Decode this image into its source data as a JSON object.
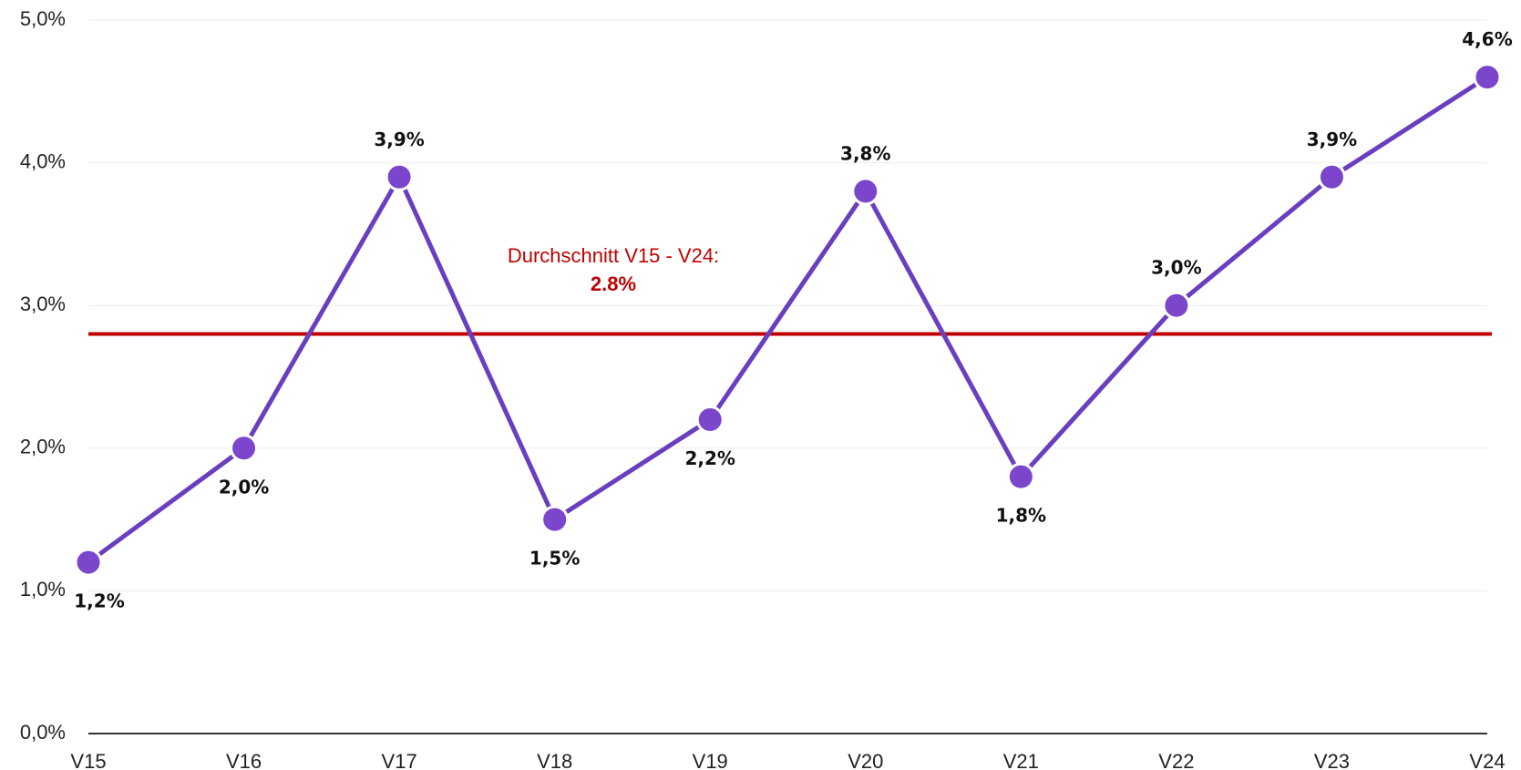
{
  "chart_data": {
    "type": "line",
    "categories": [
      "V15",
      "V16",
      "V17",
      "V18",
      "V19",
      "V20",
      "V21",
      "V22",
      "V23",
      "V24"
    ],
    "series": [
      {
        "color": "#6a3fbf",
        "marker_color": "#7b45cc",
        "values": [
          1.2,
          2.0,
          3.9,
          1.5,
          2.2,
          3.8,
          1.8,
          3.0,
          3.9,
          4.6
        ],
        "value_labels": [
          "1,2%",
          "2,0%",
          "3,9%",
          "1,5%",
          "2,2%",
          "3,8%",
          "1,8%",
          "3,0%",
          "3,9%",
          "4,6%"
        ]
      }
    ],
    "ylim": [
      0,
      5
    ],
    "yticks": [
      {
        "value": 0,
        "label": "0,0%"
      },
      {
        "value": 1,
        "label": "1,0%"
      },
      {
        "value": 2,
        "label": "2,0%"
      },
      {
        "value": 3,
        "label": "3,0%"
      },
      {
        "value": 4,
        "label": "4,0%"
      },
      {
        "value": 5,
        "label": "5,0%"
      }
    ],
    "grid": true,
    "average": {
      "value": 2.8,
      "label": "Durchschnitt V15 - V24:",
      "value_label": "2.8%",
      "color": "#c00000"
    }
  }
}
